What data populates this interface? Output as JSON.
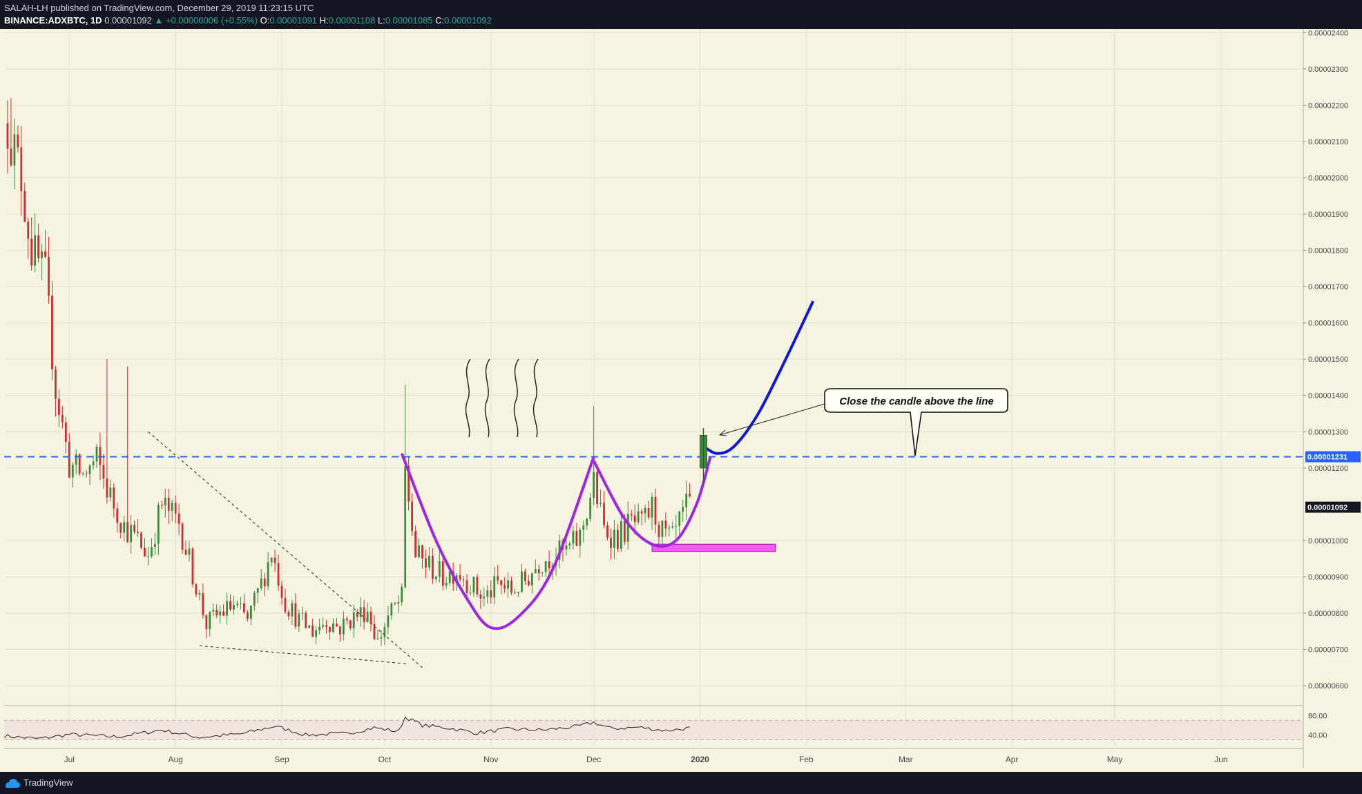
{
  "header": {
    "published": "SALAH-LH published on TradingView.com, December 29, 2019 11:23:15 UTC",
    "symbol": "BINANCE:ADXBTC, 1D",
    "last": "0.00001092",
    "change": "▲ +0.00000006 (+0.55%)",
    "o_label": "O:",
    "o_value": "0.00001091",
    "h_label": "H:",
    "h_value": "0.00001108",
    "l_label": "L:",
    "l_value": "0.00001085",
    "c_label": "C:",
    "c_value": "0.00001092"
  },
  "footer": {
    "brand": "TradingView",
    "logo_icon": "tradingview-logo-icon"
  },
  "colors": {
    "background": "#f7f3e1",
    "up": "#3d8b3d",
    "down": "#cc2f2f",
    "level": "#2962ff",
    "cup": "#9c27e0",
    "projection": "#0d17d6",
    "zone": "#f45af4",
    "last_price": "#131722",
    "level_tag": "#2962ff"
  },
  "chart_data": {
    "type": "candlestick",
    "symbol": "BINANCE:ADXBTC",
    "interval": "1D",
    "x_ticks": [
      "Jul",
      "Aug",
      "Sep",
      "Oct",
      "Nov",
      "Dec",
      "2020",
      "Feb",
      "Mar",
      "Apr",
      "May",
      "Jun"
    ],
    "x_tick_dates": [
      "2019-07-01",
      "2019-08-01",
      "2019-09-01",
      "2019-10-01",
      "2019-11-01",
      "2019-12-01",
      "2020-01-01",
      "2020-02-01",
      "2020-03-01",
      "2020-04-01",
      "2020-05-01",
      "2020-06-01"
    ],
    "xlim": [
      "2019-06-12",
      "2020-06-25"
    ],
    "y_ticks": [
      "0.00002400",
      "0.00002300",
      "0.00002200",
      "0.00002100",
      "0.00002000",
      "0.00001900",
      "0.00001800",
      "0.00001700",
      "0.00001600",
      "0.00001500",
      "0.00001400",
      "0.00001300",
      "0.00001200",
      "0.00001000",
      "0.00000900",
      "0.00000800",
      "0.00000700",
      "0.00000600"
    ],
    "ylim": [
      5.45e-06,
      2.41e-05
    ],
    "last_price_label": "0.00001092",
    "last_price": 1.092e-05,
    "level_label": "0.00001231",
    "level": 1.231e-05,
    "anchors": [
      [
        "2019-06-13",
        2.15e-05
      ],
      [
        "2019-06-17",
        2e-05
      ],
      [
        "2019-06-20",
        1.8e-05
      ],
      [
        "2019-06-24",
        1.72e-05
      ],
      [
        "2019-06-27",
        1.42e-05
      ],
      [
        "2019-07-01",
        1.21e-05
      ],
      [
        "2019-07-05",
        1.18e-05
      ],
      [
        "2019-07-09",
        1.22e-05
      ],
      [
        "2019-07-13",
        1.12e-05
      ],
      [
        "2019-07-17",
        1.04e-05
      ],
      [
        "2019-07-21",
        1e-05
      ],
      [
        "2019-07-24",
        9.6e-06
      ],
      [
        "2019-07-28",
        1.1e-05
      ],
      [
        "2019-08-02",
        1.05e-05
      ],
      [
        "2019-08-06",
        9.1e-06
      ],
      [
        "2019-08-10",
        7.7e-06
      ],
      [
        "2019-08-14",
        8e-06
      ],
      [
        "2019-08-18",
        8.2e-06
      ],
      [
        "2019-08-22",
        7.8e-06
      ],
      [
        "2019-08-26",
        8.8e-06
      ],
      [
        "2019-08-29",
        9.7e-06
      ],
      [
        "2019-09-02",
        8.3e-06
      ],
      [
        "2019-09-06",
        7.8e-06
      ],
      [
        "2019-09-10",
        7.5e-06
      ],
      [
        "2019-09-14",
        7.8e-06
      ],
      [
        "2019-09-18",
        7.6e-06
      ],
      [
        "2019-09-22",
        7.9e-06
      ],
      [
        "2019-09-26",
        8.1e-06
      ],
      [
        "2019-09-29",
        7.2e-06
      ],
      [
        "2019-10-02",
        7.9e-06
      ],
      [
        "2019-10-06",
        8.4e-06
      ],
      [
        "2019-10-07",
        1.19e-05
      ],
      [
        "2019-10-10",
        9.6e-06
      ],
      [
        "2019-10-14",
        9.3e-06
      ],
      [
        "2019-10-18",
        9e-06
      ],
      [
        "2019-10-22",
        9.2e-06
      ],
      [
        "2019-10-26",
        8.8e-06
      ],
      [
        "2019-10-30",
        8.4e-06
      ],
      [
        "2019-11-03",
        8.8e-06
      ],
      [
        "2019-11-07",
        8.6e-06
      ],
      [
        "2019-11-11",
        8.9e-06
      ],
      [
        "2019-11-15",
        9.4e-06
      ],
      [
        "2019-11-19",
        9.6e-06
      ],
      [
        "2019-11-23",
        9.7e-06
      ],
      [
        "2019-11-27",
        1.01e-05
      ],
      [
        "2019-12-01",
        1.16e-05
      ],
      [
        "2019-12-04",
        1.03e-05
      ],
      [
        "2019-12-08",
        1.01e-05
      ],
      [
        "2019-12-12",
        1.05e-05
      ],
      [
        "2019-12-15",
        1.04e-05
      ],
      [
        "2019-12-18",
        1.09e-05
      ],
      [
        "2019-12-21",
        1.02e-05
      ],
      [
        "2019-12-24",
        1e-05
      ],
      [
        "2019-12-28",
        1.09e-05
      ],
      [
        "2019-12-29",
        1.09e-05
      ]
    ],
    "annotations": {
      "callout_text": "Close the candle above the line",
      "highlighted_candle": {
        "date": "2020-01-02",
        "open": 1.2e-05,
        "close": 1.29e-05,
        "high": 1.31e-05,
        "low": 1.16e-05
      },
      "demand_zone": {
        "from": "2019-12-18",
        "to": "2020-01-23",
        "low": 9.7e-06,
        "high": 9.9e-06
      },
      "cup_left": [
        [
          "2019-10-06",
          1.24e-05
        ],
        [
          "2019-10-16",
          1e-05
        ],
        [
          "2019-10-25",
          8.4e-06
        ],
        [
          "2019-11-01",
          7.6e-06
        ],
        [
          "2019-11-09",
          7.9e-06
        ],
        [
          "2019-11-19",
          9.2e-06
        ],
        [
          "2019-12-01",
          1.23e-05
        ]
      ],
      "cup_right": [
        [
          "2019-12-01",
          1.22e-05
        ],
        [
          "2019-12-10",
          1.06e-05
        ],
        [
          "2019-12-18",
          9.9e-06
        ],
        [
          "2019-12-25",
          1e-05
        ],
        [
          "2019-12-31",
          1.1e-05
        ],
        [
          "2020-01-04",
          1.23e-05
        ]
      ],
      "projection": [
        [
          "2020-01-02",
          1.26e-05
        ],
        [
          "2020-01-06",
          1.24e-05
        ],
        [
          "2020-01-11",
          1.26e-05
        ],
        [
          "2020-01-18",
          1.35e-05
        ],
        [
          "2020-01-26",
          1.5e-05
        ],
        [
          "2020-02-03",
          1.66e-05
        ]
      ],
      "wedge_upper": [
        [
          "2019-07-24",
          1.3e-05
        ],
        [
          "2019-10-12",
          6.5e-06
        ]
      ],
      "wedge_lower": [
        [
          "2019-08-08",
          7.1e-06
        ],
        [
          "2019-10-08",
          6.6e-06
        ]
      ]
    },
    "rsi": {
      "ticks": [
        "80.00",
        "40.00"
      ],
      "levels": [
        70,
        30
      ],
      "ylim": [
        15,
        92
      ],
      "anchors": [
        [
          "2019-06-12",
          38
        ],
        [
          "2019-06-22",
          32
        ],
        [
          "2019-07-01",
          41
        ],
        [
          "2019-07-15",
          36
        ],
        [
          "2019-07-28",
          50
        ],
        [
          "2019-08-08",
          35
        ],
        [
          "2019-08-20",
          42
        ],
        [
          "2019-08-30",
          58
        ],
        [
          "2019-09-08",
          40
        ],
        [
          "2019-09-20",
          43
        ],
        [
          "2019-09-28",
          55
        ],
        [
          "2019-10-05",
          47
        ],
        [
          "2019-10-07",
          77
        ],
        [
          "2019-10-12",
          60
        ],
        [
          "2019-10-20",
          54
        ],
        [
          "2019-10-28",
          44
        ],
        [
          "2019-11-06",
          52
        ],
        [
          "2019-11-16",
          50
        ],
        [
          "2019-11-26",
          57
        ],
        [
          "2019-12-01",
          66
        ],
        [
          "2019-12-06",
          53
        ],
        [
          "2019-12-14",
          56
        ],
        [
          "2019-12-22",
          49
        ],
        [
          "2019-12-29",
          54
        ]
      ]
    }
  }
}
